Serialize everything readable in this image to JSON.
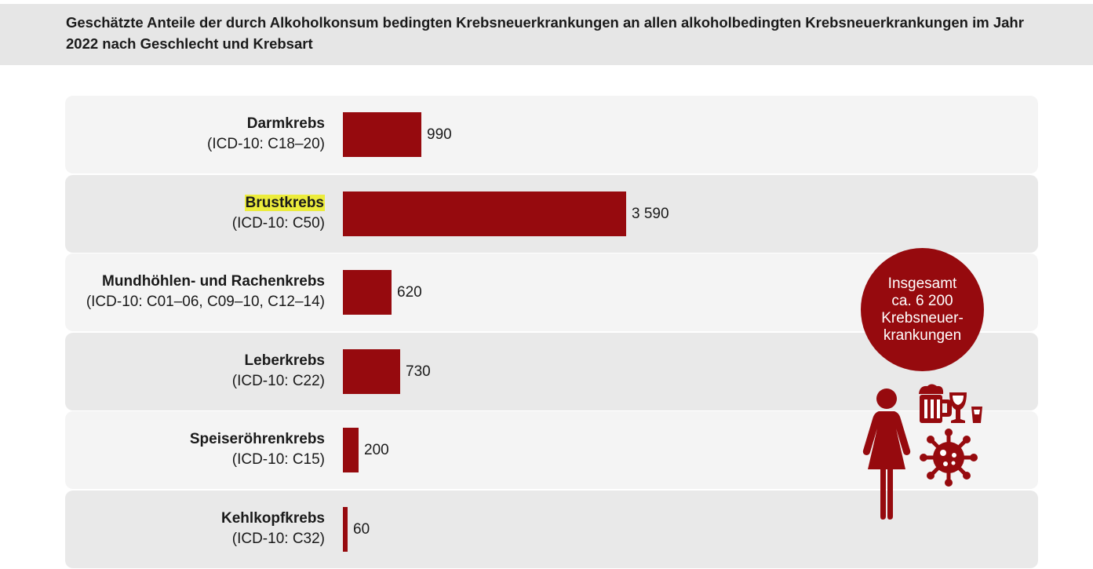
{
  "title": "Geschätzte Anteile der durch Alkoholkonsum bedingten Krebsneuerkrankungen an allen alkoholbedingten Krebsneuerkrankungen im Jahr 2022 nach Geschlecht und Krebsart",
  "total": {
    "line1": "Insgesamt",
    "line2": "ca. 6 200",
    "line3": "Krebsneuer-",
    "line4": "krankungen"
  },
  "colors": {
    "bar": "#960a0e",
    "highlight": "#ecec3c"
  },
  "pictogram_icons": [
    "woman-icon",
    "beer-mug-icon",
    "wine-glass-icon",
    "shot-glass-icon",
    "cancer-cell-icon"
  ],
  "chart_data": {
    "type": "bar",
    "orientation": "horizontal",
    "categories": [
      "Darmkrebs",
      "Brustkrebs",
      "Mundhöhlen- und Rachenkrebs",
      "Leberkrebs",
      "Speiseröhrenkrebs",
      "Kehlkopfkrebs"
    ],
    "icd_codes": [
      "(ICD-10: C18–20)",
      "(ICD-10: C50)",
      "(ICD-10: C01–06, C09–10, C12–14)",
      "(ICD-10: C22)",
      "(ICD-10: C15)",
      "(ICD-10: C32)"
    ],
    "values": [
      990,
      3590,
      620,
      730,
      200,
      60
    ],
    "value_labels": [
      "990",
      "3 590",
      "620",
      "730",
      "200",
      "60"
    ],
    "highlighted_category": "Brustkrebs",
    "grid": false
  }
}
